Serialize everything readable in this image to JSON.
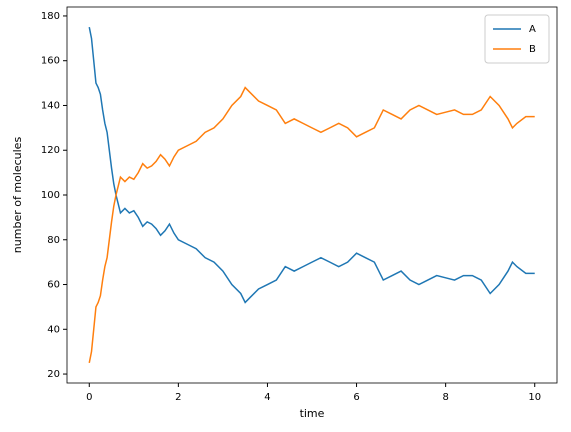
{
  "chart_data": {
    "type": "line",
    "x_label": "time",
    "y_label": "number of molecules",
    "x": [
      0,
      0.05,
      0.1,
      0.15,
      0.2,
      0.25,
      0.3,
      0.35,
      0.4,
      0.45,
      0.5,
      0.55,
      0.6,
      0.65,
      0.7,
      0.8,
      0.9,
      1.0,
      1.1,
      1.2,
      1.3,
      1.4,
      1.5,
      1.6,
      1.7,
      1.8,
      1.9,
      2.0,
      2.2,
      2.4,
      2.6,
      2.8,
      3.0,
      3.2,
      3.4,
      3.5,
      3.6,
      3.8,
      4.0,
      4.2,
      4.4,
      4.6,
      4.8,
      5.0,
      5.2,
      5.4,
      5.6,
      5.8,
      6.0,
      6.2,
      6.4,
      6.6,
      6.8,
      7.0,
      7.2,
      7.4,
      7.6,
      7.8,
      8.0,
      8.2,
      8.4,
      8.6,
      8.8,
      9.0,
      9.2,
      9.4,
      9.5,
      9.6,
      9.8,
      10.0
    ],
    "series": [
      {
        "name": "A",
        "color": "#1f77b4",
        "values": [
          175,
          170,
          160,
          150,
          148,
          145,
          138,
          132,
          128,
          120,
          112,
          105,
          100,
          96,
          92,
          94,
          92,
          93,
          90,
          86,
          88,
          87,
          85,
          82,
          84,
          87,
          83,
          80,
          78,
          76,
          72,
          70,
          66,
          60,
          56,
          52,
          54,
          58,
          60,
          62,
          68,
          66,
          68,
          70,
          72,
          70,
          68,
          70,
          74,
          72,
          70,
          62,
          64,
          66,
          62,
          60,
          62,
          64,
          63,
          62,
          64,
          64,
          62,
          56,
          60,
          66,
          70,
          68,
          65,
          65
        ]
      },
      {
        "name": "B",
        "color": "#ff7f0e",
        "values": [
          25,
          30,
          40,
          50,
          52,
          55,
          62,
          68,
          72,
          80,
          88,
          95,
          100,
          104,
          108,
          106,
          108,
          107,
          110,
          114,
          112,
          113,
          115,
          118,
          116,
          113,
          117,
          120,
          122,
          124,
          128,
          130,
          134,
          140,
          144,
          148,
          146,
          142,
          140,
          138,
          132,
          134,
          132,
          130,
          128,
          130,
          132,
          130,
          126,
          128,
          130,
          138,
          136,
          134,
          138,
          140,
          138,
          136,
          137,
          138,
          136,
          136,
          138,
          144,
          140,
          134,
          130,
          132,
          135,
          135
        ]
      }
    ],
    "xlim": [
      -0.5,
      10.5
    ],
    "ylim": [
      16,
      184
    ],
    "xticks": [
      0,
      2,
      4,
      6,
      8,
      10
    ],
    "yticks": [
      20,
      40,
      60,
      80,
      100,
      120,
      140,
      160,
      180
    ],
    "legend": "upper right"
  }
}
